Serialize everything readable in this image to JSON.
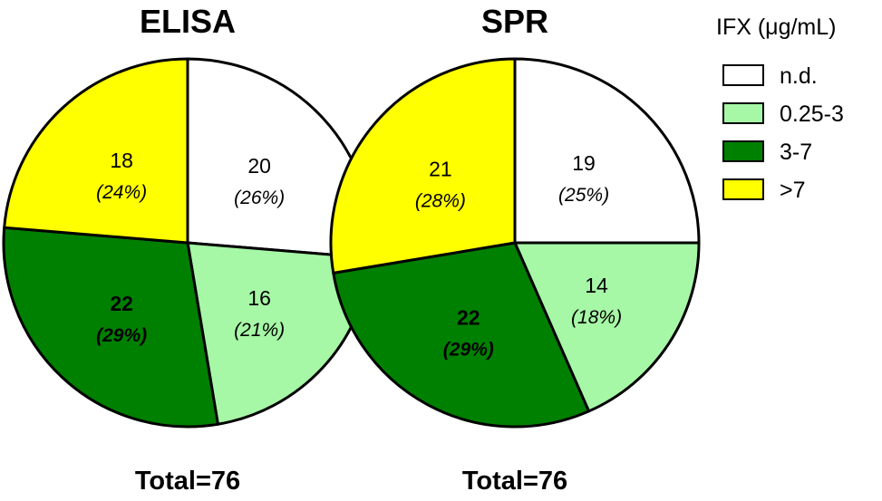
{
  "legend": {
    "title": "IFX (μg/mL)",
    "entries": [
      {
        "label": "n.d.",
        "color": "#ffffff"
      },
      {
        "label": "0.25-3",
        "color": "#a6f7a6"
      },
      {
        "label": "3-7",
        "color": "#008000"
      },
      {
        "label": ">7",
        "color": "#ffff00"
      }
    ]
  },
  "chart_data": [
    {
      "type": "pie",
      "title": "ELISA",
      "footer": "Total=76",
      "slices": [
        {
          "category": "n.d.",
          "count": 20,
          "count_label": "20",
          "percent_label": "(26%)",
          "bold": false
        },
        {
          "category": "0.25-3",
          "count": 16,
          "count_label": "16",
          "percent_label": "(21%)",
          "bold": false
        },
        {
          "category": "3-7",
          "count": 22,
          "count_label": "22",
          "percent_label": "(29%)",
          "bold": true
        },
        {
          "category": ">7",
          "count": 18,
          "count_label": "18",
          "percent_label": "(24%)",
          "bold": false
        }
      ]
    },
    {
      "type": "pie",
      "title": "SPR",
      "footer": "Total=76",
      "slices": [
        {
          "category": "n.d.",
          "count": 19,
          "count_label": "19",
          "percent_label": "(25%)",
          "bold": false
        },
        {
          "category": "0.25-3",
          "count": 14,
          "count_label": "14",
          "percent_label": "(18%)",
          "bold": false
        },
        {
          "category": "3-7",
          "count": 22,
          "count_label": "22",
          "percent_label": "(29%)",
          "bold": true
        },
        {
          "category": ">7",
          "count": 21,
          "count_label": "21",
          "percent_label": "(28%)",
          "bold": false
        }
      ]
    }
  ]
}
